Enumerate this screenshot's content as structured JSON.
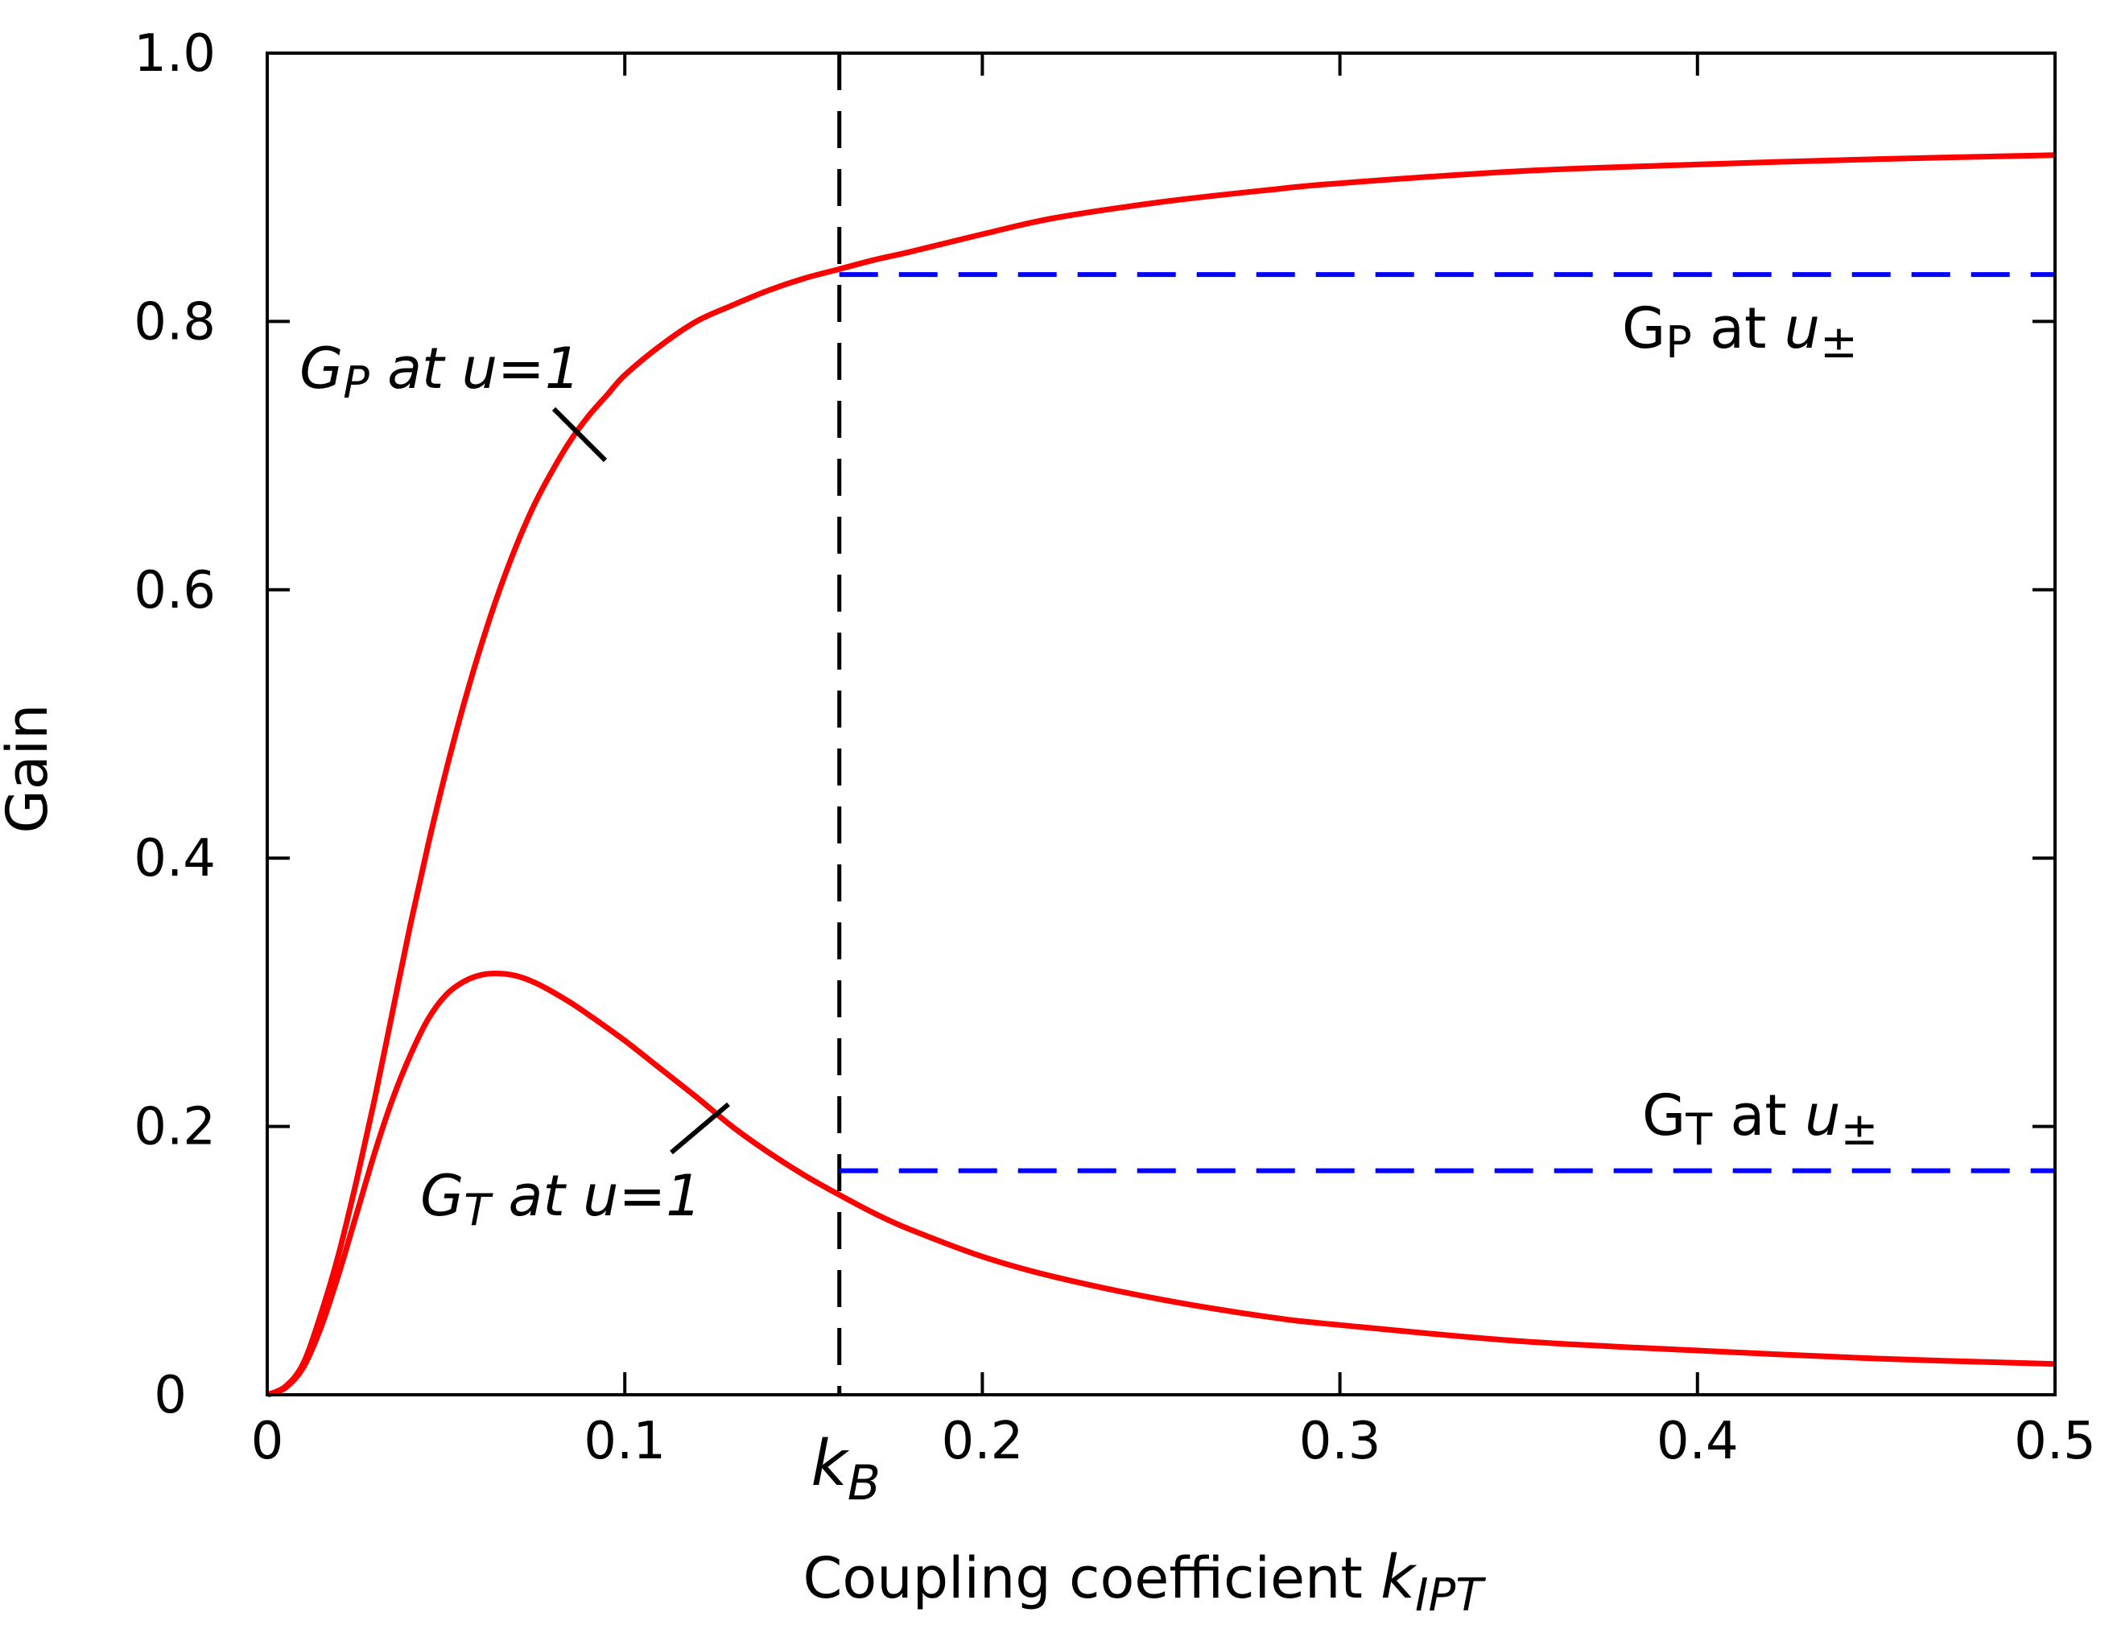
{
  "chart_data": {
    "type": "line",
    "title": "",
    "xlabel": "Coupling coefficient ",
    "xlabel_var": "k",
    "xlabel_sub": "IPT",
    "ylabel": "Gain",
    "xlim": [
      0,
      0.5
    ],
    "ylim": [
      0,
      1.0
    ],
    "xticks": [
      0,
      0.1,
      0.2,
      0.3,
      0.4,
      0.5
    ],
    "xtick_labels": [
      "0",
      "0.1",
      "0.2",
      "0.3",
      "0.4",
      "0.5"
    ],
    "yticks": [
      0,
      0.2,
      0.4,
      0.6,
      0.8,
      1.0
    ],
    "ytick_labels": [
      "0",
      "0.2",
      "0.4",
      "0.6",
      "0.8",
      "1.0"
    ],
    "grid": false,
    "kB": {
      "x": 0.16,
      "label_var": "k",
      "label_sub": "B",
      "color": "#000000"
    },
    "series": [
      {
        "name": "GP at u=1",
        "color": "#ff0000",
        "x": [
          0,
          0.005,
          0.01,
          0.015,
          0.02,
          0.025,
          0.03,
          0.035,
          0.04,
          0.045,
          0.05,
          0.055,
          0.06,
          0.065,
          0.07,
          0.075,
          0.08,
          0.085,
          0.09,
          0.095,
          0.1,
          0.11,
          0.12,
          0.13,
          0.14,
          0.15,
          0.16,
          0.17,
          0.18,
          0.2,
          0.22,
          0.25,
          0.28,
          0.3,
          0.35,
          0.4,
          0.45,
          0.5
        ],
        "values": [
          0,
          0.006,
          0.023,
          0.06,
          0.105,
          0.16,
          0.22,
          0.285,
          0.35,
          0.41,
          0.465,
          0.515,
          0.56,
          0.6,
          0.635,
          0.665,
          0.69,
          0.712,
          0.73,
          0.745,
          0.76,
          0.782,
          0.8,
          0.812,
          0.823,
          0.832,
          0.839,
          0.846,
          0.852,
          0.865,
          0.877,
          0.889,
          0.898,
          0.903,
          0.912,
          0.917,
          0.921,
          0.924
        ]
      },
      {
        "name": "GT at u=1",
        "color": "#ff0000",
        "x": [
          0,
          0.005,
          0.01,
          0.015,
          0.02,
          0.025,
          0.03,
          0.035,
          0.04,
          0.045,
          0.05,
          0.055,
          0.06,
          0.065,
          0.07,
          0.075,
          0.08,
          0.085,
          0.09,
          0.1,
          0.11,
          0.12,
          0.13,
          0.14,
          0.15,
          0.16,
          0.17,
          0.18,
          0.2,
          0.22,
          0.25,
          0.28,
          0.3,
          0.35,
          0.4,
          0.45,
          0.5
        ],
        "values": [
          0,
          0.005,
          0.02,
          0.05,
          0.09,
          0.135,
          0.18,
          0.22,
          0.253,
          0.28,
          0.298,
          0.308,
          0.313,
          0.314,
          0.312,
          0.307,
          0.3,
          0.292,
          0.283,
          0.264,
          0.243,
          0.222,
          0.2,
          0.181,
          0.164,
          0.149,
          0.135,
          0.123,
          0.103,
          0.088,
          0.071,
          0.058,
          0.052,
          0.04,
          0.033,
          0.027,
          0.023
        ]
      },
      {
        "name": "GP at u±",
        "color": "#0000ff",
        "dashed": true,
        "x": [
          0.16,
          0.5
        ],
        "values": [
          0.835,
          0.835
        ]
      },
      {
        "name": "GT at u±",
        "color": "#0000ff",
        "dashed": true,
        "x": [
          0.16,
          0.5
        ],
        "values": [
          0.167,
          0.167
        ]
      }
    ],
    "annotations": {
      "gp_u1": {
        "g": "G",
        "sub": "P",
        "rest": " at u=1"
      },
      "gt_u1": {
        "g": "G",
        "sub": "T",
        "rest": " at u=1"
      },
      "gp_upm": {
        "g": "G",
        "sub": "P",
        "at": " at ",
        "u": "u",
        "pm": "±"
      },
      "gt_upm": {
        "g": "G",
        "sub": "T",
        "at": " at ",
        "u": "u",
        "pm": "±"
      }
    }
  }
}
